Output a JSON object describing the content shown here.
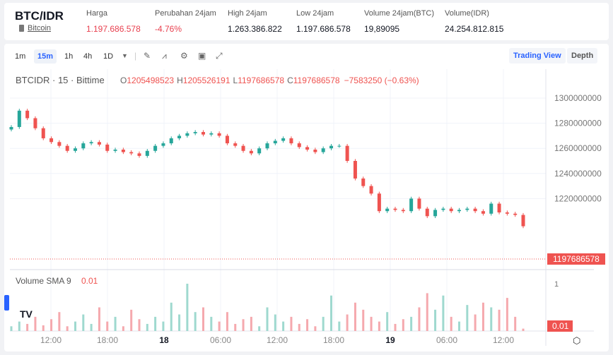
{
  "header": {
    "pair": "BTC/IDR",
    "coin": "Bitcoin",
    "stats": [
      {
        "label": "Harga",
        "value": "1.197.686.578",
        "color": "red"
      },
      {
        "label": "Perubahan 24jam",
        "value": "-4.76%",
        "color": "red"
      },
      {
        "label": "High 24jam",
        "value": "1.263.386.822"
      },
      {
        "label": "Low 24jam",
        "value": "1.197.686.578"
      },
      {
        "label": "Volume 24jam(BTC)",
        "value": "19,89095"
      },
      {
        "label": "Volume(IDR)",
        "value": "24.254.812.815"
      }
    ]
  },
  "toolbar": {
    "intervals": [
      "1m",
      "15m",
      "1h",
      "4h",
      "1D"
    ],
    "active": "15m",
    "trading_view": "Trading View",
    "depth": "Depth"
  },
  "legend": {
    "symbol": "BTCIDR · 15 · Bittime",
    "o": "O",
    "ov": "1205498523",
    "h": "H",
    "hv": "1205526191",
    "l": "L",
    "lv": "1197686578",
    "c": "C",
    "cv": "1197686578",
    "chg": "−7583250 (−0.63%)"
  },
  "volume_legend": {
    "label": "Volume SMA 9",
    "value": "0.01"
  },
  "colors": {
    "up": "#26a69a",
    "down": "#ef5350",
    "accent": "#2962ff"
  },
  "chart_data": {
    "type": "candlestick",
    "y_ticks": [
      1300000000,
      1280000000,
      1260000000,
      1240000000,
      1220000000
    ],
    "ylim": [
      1196000000,
      1306000000
    ],
    "last_price_label": "1197686578",
    "x_ticks": [
      "12:00",
      "18:00",
      "18",
      "06:00",
      "12:00",
      "18:00",
      "19",
      "06:00",
      "12:00"
    ],
    "closes_millions": [
      1277,
      1290,
      1284,
      1276,
      1268,
      1265,
      1262,
      1258,
      1260,
      1264,
      1265,
      1263,
      1258,
      1259,
      1257,
      1256,
      1254,
      1258,
      1262,
      1264,
      1268,
      1270,
      1272,
      1273,
      1271,
      1272,
      1270,
      1264,
      1262,
      1258,
      1256,
      1260,
      1264,
      1266,
      1268,
      1264,
      1261,
      1259,
      1257,
      1260,
      1262,
      1262,
      1250,
      1236,
      1230,
      1224,
      1210,
      1212,
      1211,
      1210,
      1220,
      1212,
      1206,
      1211,
      1212,
      1210,
      1211,
      1212,
      1210,
      1208,
      1216,
      1209,
      1208,
      1207,
      1198
    ],
    "volume_axis": "1",
    "volume_last": "0.01",
    "volumes": [
      0.1,
      0.2,
      0.15,
      0.3,
      0.12,
      0.25,
      0.4,
      0.1,
      0.2,
      0.35,
      0.15,
      0.5,
      0.2,
      0.3,
      0.1,
      0.45,
      0.25,
      0.15,
      0.3,
      0.2,
      0.6,
      0.35,
      1.0,
      0.4,
      0.5,
      0.3,
      0.2,
      0.4,
      0.15,
      0.25,
      0.3,
      0.1,
      0.5,
      0.35,
      0.2,
      0.3,
      0.15,
      0.25,
      0.1,
      0.3,
      0.75,
      0.2,
      0.35,
      0.6,
      0.45,
      0.3,
      0.2,
      0.4,
      0.15,
      0.25,
      0.3,
      0.5,
      0.8,
      0.45,
      0.75,
      0.3,
      0.2,
      0.55,
      0.35,
      0.6,
      0.5,
      0.45,
      0.7,
      0.3,
      0.05
    ]
  }
}
